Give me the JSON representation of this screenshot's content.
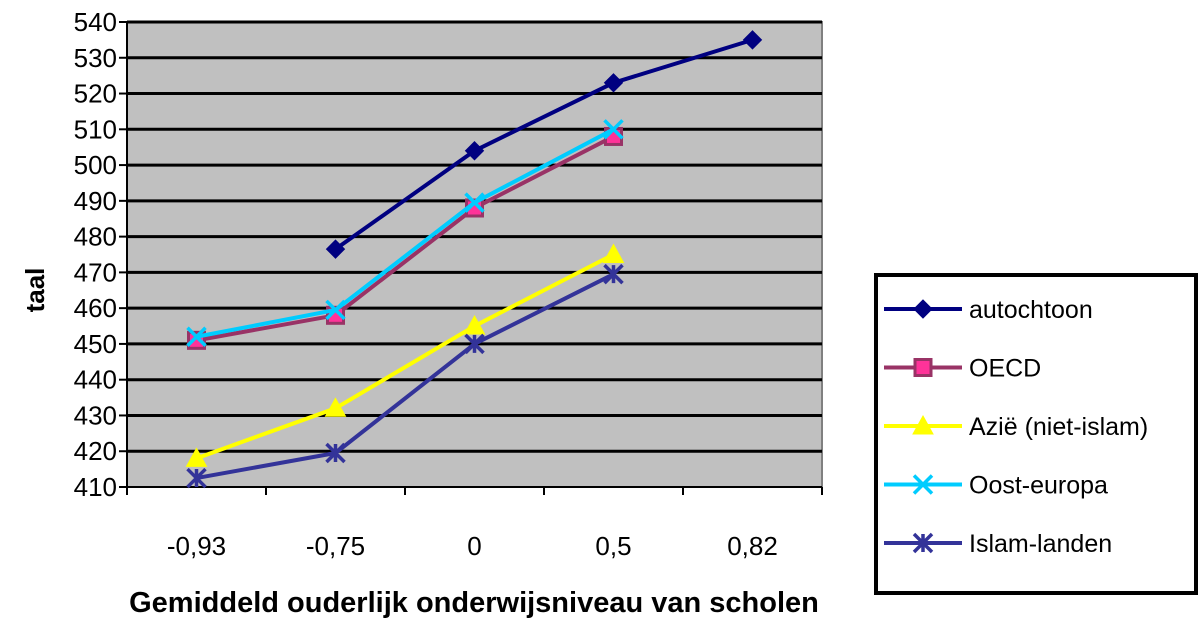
{
  "chart_data": {
    "type": "line",
    "categories": [
      "-0,93",
      "-0,75",
      "0",
      "0,5",
      "0,82"
    ],
    "xlabel": "Gemiddeld ouderlijk onderwijsniveau  van scholen",
    "ylabel": "taal",
    "ylim": [
      410,
      540
    ],
    "yticks": [
      410,
      420,
      430,
      440,
      450,
      460,
      470,
      480,
      490,
      500,
      510,
      520,
      530,
      540
    ],
    "grid": true,
    "legend_position": "right",
    "plot_background": "#c0c0c0",
    "series": [
      {
        "name": "autochtoon",
        "color": "#000080",
        "marker": "diamond",
        "values": [
          null,
          476.5,
          504,
          523,
          535
        ]
      },
      {
        "name": "OECD",
        "color": "#993366",
        "marker": "square",
        "values": [
          451,
          458,
          488,
          508,
          null
        ]
      },
      {
        "name": "Azië (niet-islam)",
        "color": "#ffff00",
        "marker": "triangle",
        "values": [
          418,
          432,
          455,
          475,
          null
        ]
      },
      {
        "name": "Oost-europa",
        "color": "#00ccff",
        "marker": "x",
        "values": [
          452,
          459.5,
          489.5,
          510,
          null
        ]
      },
      {
        "name": "Islam-landen",
        "color": "#333399",
        "marker": "star",
        "values": [
          412.5,
          419.5,
          450,
          469.5,
          null
        ]
      }
    ]
  }
}
